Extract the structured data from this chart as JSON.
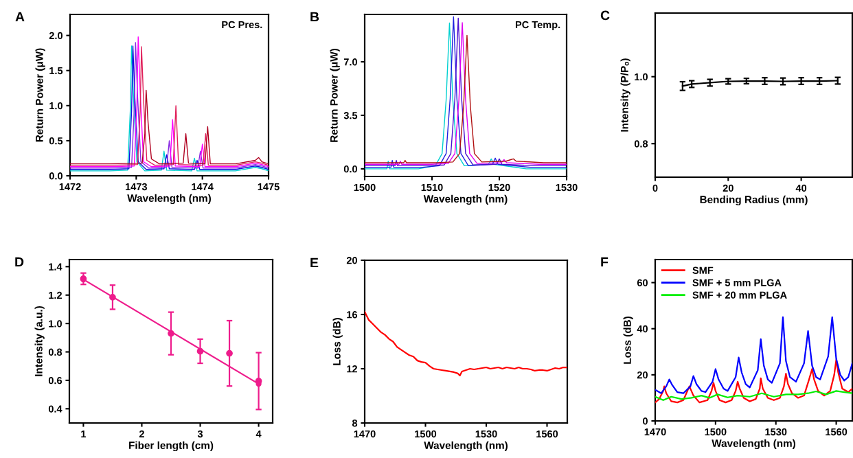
{
  "chart_data": [
    {
      "type": "line",
      "title": "A",
      "annotations": [
        "PC Pres."
      ],
      "xlabel": "Wavelength (nm)",
      "ylabel": "Return Power (μW)",
      "xlim": [
        1472,
        1475
      ],
      "xticks": [
        1472,
        1473,
        1474,
        1475
      ],
      "ylim": [
        0,
        2.3
      ],
      "yticks": [
        {
          "value": 0,
          "label": "0.0"
        },
        {
          "value": 0.5,
          "label": "0.5"
        },
        {
          "value": 1.0,
          "label": "1.0"
        },
        {
          "value": 1.5,
          "label": "1.5"
        },
        {
          "value": 2.0,
          "label": "2.0"
        }
      ],
      "series": [
        {
          "color": "#00d0d0",
          "x": [
            1472,
            1472.3,
            1472.6,
            1472.87,
            1472.91,
            1472.93,
            1472.96,
            1473.01,
            1473.13,
            1473.38,
            1473.42,
            1473.46,
            1473.84,
            1473.88,
            1473.92,
            1474.5,
            1474.8,
            1474.9,
            1475
          ],
          "values": [
            0.07,
            0.07,
            0.07,
            0.08,
            0.92,
            1.85,
            1.1,
            0.2,
            0.07,
            0.08,
            0.35,
            0.08,
            0.07,
            0.25,
            0.07,
            0.07,
            0.12,
            0.1,
            0.07
          ]
        },
        {
          "color": "#1010e0",
          "x": [
            1472,
            1472.3,
            1472.6,
            1472.89,
            1472.93,
            1472.95,
            1472.98,
            1473.03,
            1473.15,
            1473.42,
            1473.46,
            1473.5,
            1473.88,
            1473.92,
            1473.96,
            1474.5,
            1474.8,
            1474.9,
            1475
          ],
          "values": [
            0.09,
            0.09,
            0.09,
            0.1,
            0.92,
            1.85,
            1.1,
            0.2,
            0.09,
            0.1,
            0.3,
            0.1,
            0.09,
            0.22,
            0.09,
            0.09,
            0.14,
            0.12,
            0.09
          ]
        },
        {
          "color": "#8a2be2",
          "x": [
            1472,
            1472.3,
            1472.6,
            1472.93,
            1472.97,
            1472.99,
            1473.02,
            1473.07,
            1473.19,
            1473.46,
            1473.5,
            1473.54,
            1473.93,
            1473.97,
            1474.01,
            1474.5,
            1474.8,
            1474.9,
            1475
          ],
          "values": [
            0.11,
            0.11,
            0.11,
            0.12,
            0.95,
            1.9,
            1.15,
            0.2,
            0.11,
            0.12,
            0.5,
            0.12,
            0.11,
            0.35,
            0.11,
            0.11,
            0.16,
            0.14,
            0.11
          ]
        },
        {
          "color": "#ff00ff",
          "x": [
            1472,
            1472.3,
            1472.6,
            1472.97,
            1473.01,
            1473.03,
            1473.06,
            1473.11,
            1473.23,
            1473.51,
            1473.55,
            1473.59,
            1473.96,
            1474.0,
            1474.04,
            1474.5,
            1474.8,
            1474.9,
            1475
          ],
          "values": [
            0.13,
            0.13,
            0.13,
            0.14,
            1.0,
            1.98,
            1.2,
            0.2,
            0.13,
            0.14,
            0.8,
            0.14,
            0.13,
            0.45,
            0.13,
            0.13,
            0.18,
            0.16,
            0.13
          ]
        },
        {
          "color": "#e0205a",
          "x": [
            1472,
            1472.3,
            1472.6,
            1473.02,
            1473.06,
            1473.08,
            1473.11,
            1473.16,
            1473.28,
            1473.56,
            1473.6,
            1473.64,
            1474.01,
            1474.05,
            1474.09,
            1474.5,
            1474.8,
            1474.9,
            1475
          ],
          "values": [
            0.15,
            0.15,
            0.15,
            0.16,
            0.92,
            1.84,
            1.1,
            0.22,
            0.15,
            0.16,
            1.0,
            0.16,
            0.15,
            0.6,
            0.15,
            0.15,
            0.2,
            0.18,
            0.15
          ]
        },
        {
          "color": "#b00020",
          "x": [
            1472,
            1472.3,
            1472.6,
            1473.09,
            1473.13,
            1473.15,
            1473.18,
            1473.23,
            1473.35,
            1473.71,
            1473.75,
            1473.79,
            1474.04,
            1474.08,
            1474.12,
            1474.5,
            1474.8,
            1474.85,
            1474.9,
            1475
          ],
          "values": [
            0.17,
            0.17,
            0.17,
            0.18,
            0.6,
            1.22,
            0.75,
            0.24,
            0.17,
            0.18,
            0.6,
            0.18,
            0.17,
            0.7,
            0.17,
            0.17,
            0.22,
            0.26,
            0.2,
            0.17
          ]
        }
      ]
    },
    {
      "type": "line",
      "title": "B",
      "annotations": [
        "PC Temp."
      ],
      "xlabel": "Wavelength (nm)",
      "ylabel": "Return Power (μW)",
      "xlim": [
        1500,
        1530
      ],
      "xticks": [
        1500,
        1510,
        1520,
        1530
      ],
      "ylim": [
        -0.5,
        10.1
      ],
      "yticks": [
        {
          "value": 0,
          "label": "0.0"
        },
        {
          "value": 3.5,
          "label": "3.5"
        },
        {
          "value": 7.0,
          "label": "7.0"
        }
      ],
      "series": [
        {
          "color": "#00d0d0",
          "x": [
            1500,
            1503.3,
            1503.5,
            1503.7,
            1508,
            1510.5,
            1511.5,
            1512.1,
            1512.6,
            1513.1,
            1513.7,
            1514.8,
            1518.4,
            1518.8,
            1519.2,
            1524,
            1530
          ],
          "values": [
            0.0,
            0.0,
            0.5,
            0.0,
            0.0,
            0.2,
            1.0,
            4.5,
            9.54,
            4.5,
            1.0,
            0.2,
            0.3,
            0.65,
            0.3,
            0.0,
            0.0
          ]
        },
        {
          "color": "#2020e0",
          "x": [
            1500,
            1503.9,
            1504.1,
            1504.3,
            1508.6,
            1511.1,
            1512.1,
            1512.7,
            1513.2,
            1513.7,
            1514.3,
            1515.4,
            1519.0,
            1519.4,
            1519.8,
            1524.6,
            1530
          ],
          "values": [
            0.1,
            0.1,
            0.55,
            0.1,
            0.1,
            0.2,
            1.0,
            4.6,
            9.95,
            4.6,
            1.0,
            0.2,
            0.3,
            0.7,
            0.3,
            0.1,
            0.1
          ]
        },
        {
          "color": "#4b0fd0",
          "x": [
            1500,
            1504.5,
            1504.7,
            1504.9,
            1509.3,
            1511.8,
            1512.8,
            1513.4,
            1513.9,
            1514.4,
            1515.0,
            1516.1,
            1519.6,
            1520.0,
            1520.4,
            1525.3,
            1530
          ],
          "values": [
            0.2,
            0.2,
            0.55,
            0.2,
            0.2,
            0.25,
            1.0,
            4.6,
            9.86,
            4.6,
            1.0,
            0.25,
            0.3,
            0.65,
            0.3,
            0.2,
            0.2
          ]
        },
        {
          "color": "#e000f0",
          "x": [
            1500,
            1505.1,
            1505.3,
            1505.5,
            1509.9,
            1512.4,
            1513.4,
            1514.0,
            1514.5,
            1515.0,
            1515.6,
            1516.7,
            1520.3,
            1520.7,
            1521.1,
            1525.9,
            1530
          ],
          "values": [
            0.3,
            0.3,
            0.5,
            0.3,
            0.3,
            0.35,
            1.0,
            4.5,
            9.56,
            4.5,
            1.0,
            0.35,
            0.4,
            0.6,
            0.4,
            0.3,
            0.3
          ]
        },
        {
          "color": "#b01010",
          "x": [
            1500,
            1505.8,
            1506.0,
            1506.2,
            1510.6,
            1513.1,
            1514.1,
            1514.7,
            1515.2,
            1515.7,
            1516.3,
            1517.4,
            1521.0,
            1521.7,
            1522.1,
            1522.5,
            1526.6,
            1530
          ],
          "values": [
            0.4,
            0.4,
            0.55,
            0.4,
            0.4,
            0.45,
            1.0,
            4.1,
            8.73,
            4.1,
            1.0,
            0.45,
            0.5,
            0.6,
            0.65,
            0.5,
            0.4,
            0.4
          ]
        }
      ]
    },
    {
      "type": "line",
      "title": "C",
      "xlabel": "Bending Radius (mm)",
      "ylabel": "Intensity (P/Pₒ)",
      "xlim": [
        0,
        54
      ],
      "xticks": [
        0,
        20,
        40
      ],
      "ylim": [
        0.7,
        1.19
      ],
      "yticks": [
        {
          "value": 0.8,
          "label": "0.8"
        },
        {
          "value": 1.0,
          "label": "1.0"
        }
      ],
      "marker": "none",
      "series": [
        {
          "color": "#000000",
          "x": [
            7.5,
            10,
            15,
            20,
            25,
            30,
            35,
            40,
            45,
            50
          ],
          "values": [
            0.972,
            0.978,
            0.982,
            0.986,
            0.987,
            0.987,
            0.986,
            0.987,
            0.987,
            0.988
          ],
          "errors": [
            0.013,
            0.01,
            0.01,
            0.008,
            0.008,
            0.01,
            0.01,
            0.01,
            0.01,
            0.01
          ]
        }
      ]
    },
    {
      "type": "scatter",
      "title": "D",
      "xlabel": "Fiber length (cm)",
      "ylabel": "Intensity (a.u.)",
      "xlim": [
        0.76,
        4.24
      ],
      "xticks": [
        1,
        2,
        3,
        4
      ],
      "ylim": [
        0.3,
        1.45
      ],
      "yticks": [
        {
          "value": 0.4,
          "label": "0.4"
        },
        {
          "value": 0.6,
          "label": "0.6"
        },
        {
          "value": 0.8,
          "label": "0.8"
        },
        {
          "value": 1.0,
          "label": "1.0"
        },
        {
          "value": 1.2,
          "label": "1.2"
        },
        {
          "value": 1.4,
          "label": "1.4"
        }
      ],
      "marker": "circle",
      "series": [
        {
          "color": "#ee1c8c",
          "x": [
            1,
            1.5,
            2.5,
            3,
            3.5,
            4
          ],
          "values": [
            1.315,
            1.185,
            0.93,
            0.805,
            0.79,
            0.595
          ],
          "errors": [
            0.04,
            0.085,
            0.15,
            0.085,
            0.23,
            0.2
          ]
        },
        {
          "type": "line",
          "color": "#ee1c8c",
          "x": [
            1,
            4
          ],
          "values": [
            1.31,
            0.575
          ]
        }
      ]
    },
    {
      "type": "line",
      "title": "E",
      "xlabel": "Wavelength (nm)",
      "ylabel": "Loss (dB)",
      "xlim": [
        1470,
        1570
      ],
      "xticks": [
        1470,
        1500,
        1530,
        1560
      ],
      "ylim": [
        8,
        20
      ],
      "yticks": [
        8,
        12,
        16,
        20
      ],
      "series": [
        {
          "color": "#ff0000",
          "x": [
            1470,
            1472,
            1474,
            1476,
            1478,
            1480,
            1482,
            1484,
            1486,
            1488,
            1490,
            1492,
            1494,
            1496,
            1498,
            1500,
            1502,
            1504,
            1506,
            1508,
            1510,
            1512,
            1514,
            1516,
            1517,
            1518,
            1520,
            1522,
            1524,
            1526,
            1528,
            1530,
            1532,
            1534,
            1536,
            1538,
            1540,
            1542,
            1544,
            1546,
            1548,
            1550,
            1552,
            1554,
            1556,
            1558,
            1560,
            1562,
            1564,
            1566,
            1568,
            1570
          ],
          "values": [
            16.2,
            15.6,
            15.3,
            15.0,
            14.7,
            14.5,
            14.2,
            14.0,
            13.6,
            13.4,
            13.2,
            13.0,
            12.9,
            12.6,
            12.5,
            12.45,
            12.2,
            12.0,
            11.95,
            11.9,
            11.85,
            11.8,
            11.75,
            11.65,
            11.5,
            11.8,
            11.9,
            12.0,
            11.95,
            12.0,
            12.05,
            12.1,
            12.0,
            12.05,
            12.1,
            12.0,
            12.1,
            12.05,
            12.0,
            12.1,
            12.0,
            12.0,
            11.95,
            11.85,
            11.9,
            11.9,
            11.85,
            11.95,
            12.05,
            12.0,
            12.1,
            12.1
          ]
        }
      ]
    },
    {
      "type": "line",
      "title": "F",
      "xlabel": "Wavelength (nm)",
      "ylabel": "Loss (dB)",
      "xlim": [
        1470,
        1568
      ],
      "xticks": [
        1470,
        1500,
        1530,
        1560
      ],
      "ylim": [
        0,
        70
      ],
      "yticks": [
        0,
        20,
        40,
        60
      ],
      "legend": "top left",
      "series": [
        {
          "name": "SMF",
          "color": "#ff0000",
          "x": [
            1470,
            1472,
            1474,
            1474.5,
            1475.5,
            1478,
            1481,
            1484,
            1486,
            1487,
            1489,
            1492,
            1496,
            1498,
            1499,
            1500,
            1502,
            1505,
            1508,
            1510,
            1511,
            1512,
            1514,
            1517,
            1520,
            1522,
            1522.5,
            1523.5,
            1526,
            1529,
            1532,
            1534,
            1535,
            1536,
            1538,
            1541,
            1544,
            1546.5,
            1548,
            1549,
            1551,
            1554,
            1557,
            1559,
            1560,
            1561,
            1563,
            1566,
            1568
          ],
          "values": [
            8,
            9.5,
            13,
            15,
            12,
            8.5,
            8,
            9,
            13,
            15,
            11,
            8,
            9,
            13,
            16.5,
            13,
            9,
            8,
            9,
            13,
            17,
            14,
            10,
            8.5,
            9.5,
            14,
            18.5,
            14,
            10,
            9,
            10,
            15,
            20.5,
            16,
            12,
            10,
            11,
            18,
            22.5,
            18,
            13,
            11,
            13,
            20,
            26.5,
            21,
            14,
            12.5,
            14
          ]
        },
        {
          "name": "SMF + 5 mm PLGA",
          "color": "#0000ff",
          "x": [
            1470,
            1473,
            1475.5,
            1477,
            1478.5,
            1481,
            1484,
            1487.5,
            1489,
            1490.5,
            1493,
            1495,
            1498.5,
            1500,
            1501.5,
            1504,
            1506,
            1510,
            1511.5,
            1513,
            1515,
            1517,
            1521,
            1522.5,
            1524,
            1526,
            1528,
            1532,
            1533.5,
            1535,
            1537,
            1540,
            1544,
            1546,
            1548,
            1550,
            1552,
            1556,
            1558,
            1560,
            1562,
            1564,
            1566,
            1568
          ],
          "values": [
            13.5,
            12,
            15,
            18,
            15.5,
            12.5,
            12,
            15,
            19.5,
            16,
            13,
            12.5,
            17,
            22.5,
            18,
            14,
            13,
            19,
            27.5,
            21,
            16,
            14.5,
            22,
            35.5,
            24,
            18,
            16.5,
            25,
            45,
            26,
            19,
            17,
            25,
            39,
            24,
            19,
            18,
            28,
            45,
            27,
            20,
            17.5,
            19,
            25
          ]
        },
        {
          "name": "SMF + 20 mm PLGA",
          "color": "#00ee00",
          "x": [
            1470,
            1474,
            1478,
            1483,
            1488,
            1493,
            1497,
            1501,
            1506,
            1511,
            1517,
            1523,
            1529,
            1535,
            1541,
            1546,
            1550,
            1555,
            1560,
            1564,
            1568
          ],
          "values": [
            10.5,
            9,
            10.5,
            9.5,
            10,
            11,
            10,
            11.5,
            10.2,
            11,
            10.5,
            12,
            10.5,
            11.5,
            11.5,
            12,
            12.8,
            11.5,
            13,
            12.5,
            12
          ]
        }
      ]
    }
  ]
}
